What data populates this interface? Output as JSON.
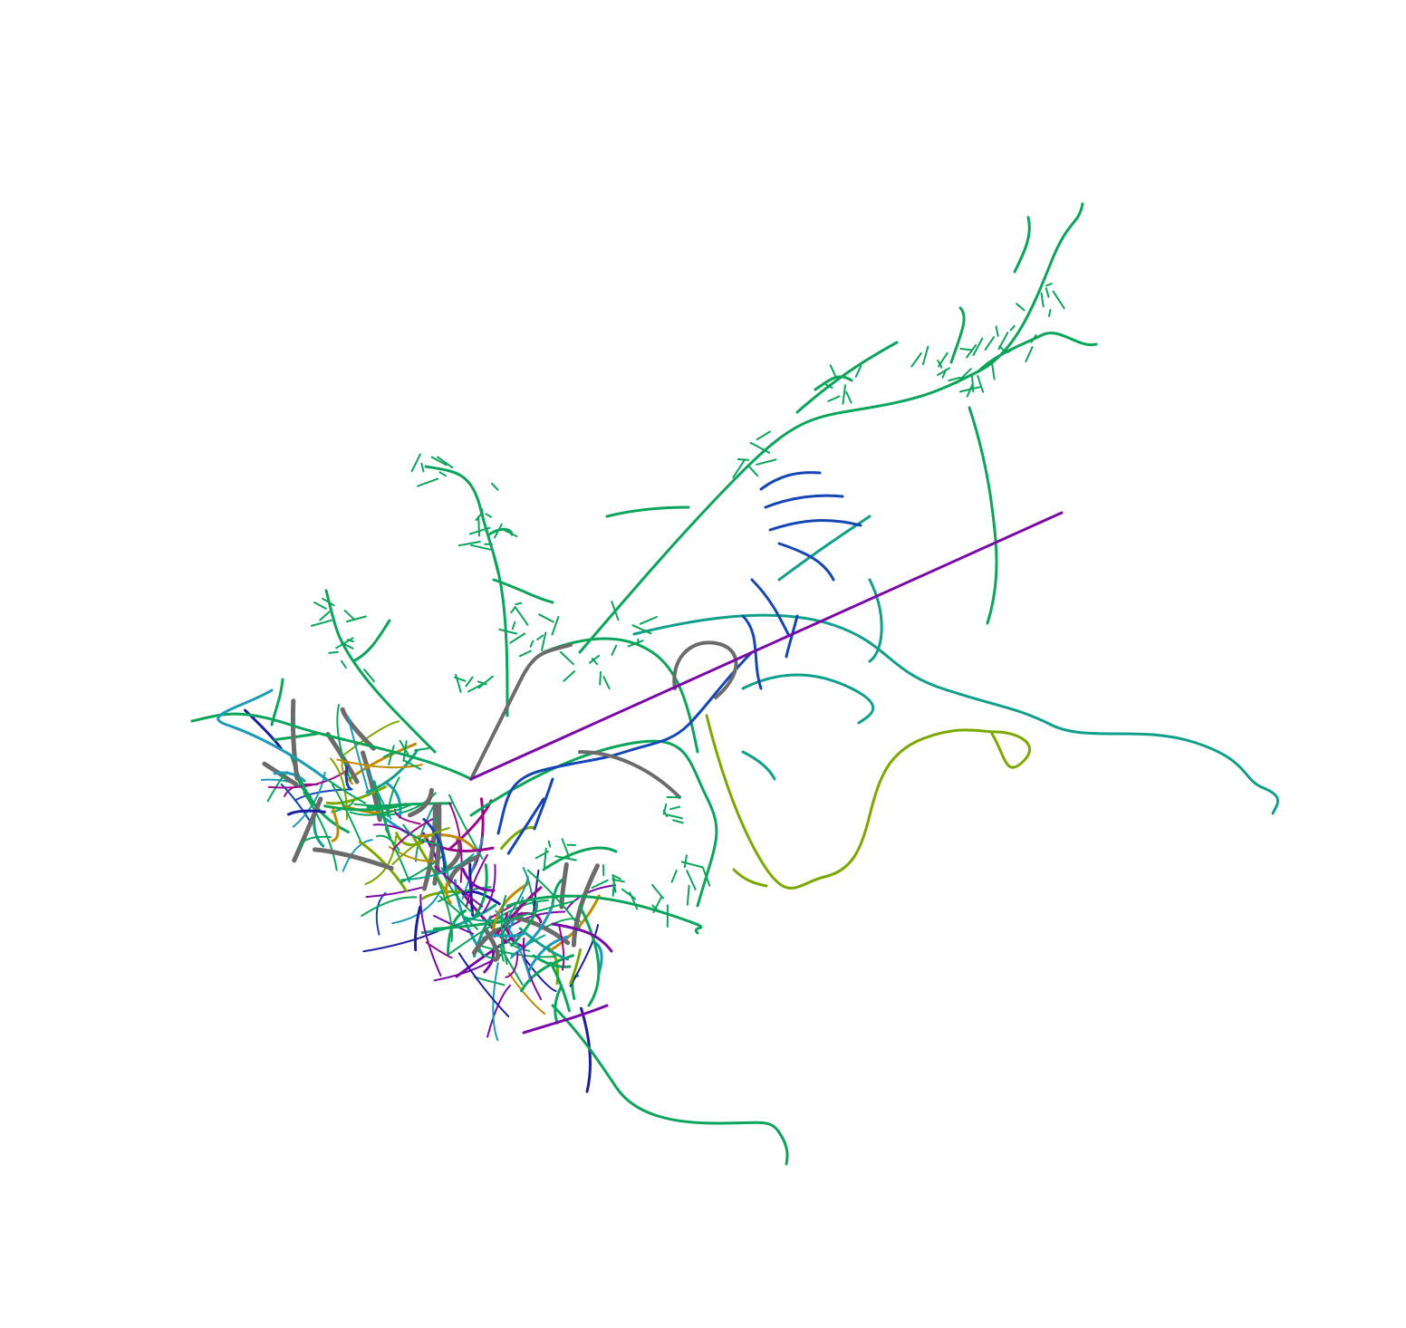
{
  "image": {
    "subject": "neuron-morphology-tracing",
    "background_color": "#ffffff",
    "structure_colors": {
      "green": "#0aa55a",
      "teal": "#0f9f8a",
      "cyan": "#1b9bb8",
      "blue": "#1446b4",
      "navy": "#1b1ea0",
      "purple": "#7a0aa8",
      "magenta": "#9a0a8a",
      "gray": "#6b6b6b",
      "olive": "#7aa800",
      "orange": "#c08a00"
    }
  }
}
